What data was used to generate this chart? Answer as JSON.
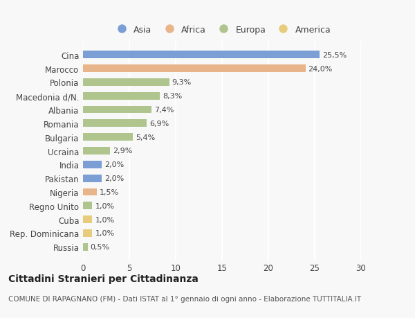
{
  "countries": [
    "Cina",
    "Marocco",
    "Polonia",
    "Macedonia d/N.",
    "Albania",
    "Romania",
    "Bulgaria",
    "Ucraina",
    "India",
    "Pakistan",
    "Nigeria",
    "Regno Unito",
    "Cuba",
    "Rep. Dominicana",
    "Russia"
  ],
  "values": [
    25.5,
    24.0,
    9.3,
    8.3,
    7.4,
    6.9,
    5.4,
    2.9,
    2.0,
    2.0,
    1.5,
    1.0,
    1.0,
    1.0,
    0.5
  ],
  "labels": [
    "25,5%",
    "24,0%",
    "9,3%",
    "8,3%",
    "7,4%",
    "6,9%",
    "5,4%",
    "2,9%",
    "2,0%",
    "2,0%",
    "1,5%",
    "1,0%",
    "1,0%",
    "1,0%",
    "0,5%"
  ],
  "continents": [
    "Asia",
    "Africa",
    "Europa",
    "Europa",
    "Europa",
    "Europa",
    "Europa",
    "Europa",
    "Asia",
    "Asia",
    "Africa",
    "Europa",
    "America",
    "America",
    "Europa"
  ],
  "colors": {
    "Asia": "#7b9fd4",
    "Africa": "#e8b48a",
    "Europa": "#b0c48e",
    "America": "#e8cc7e"
  },
  "legend_order": [
    "Asia",
    "Africa",
    "Europa",
    "America"
  ],
  "title": "Cittadini Stranieri per Cittadinanza",
  "subtitle": "COMUNE DI RAPAGNANO (FM) - Dati ISTAT al 1° gennaio di ogni anno - Elaborazione TUTTITALIA.IT",
  "xlim": [
    0,
    30
  ],
  "xticks": [
    0,
    5,
    10,
    15,
    20,
    25,
    30
  ],
  "background_color": "#f8f8f8",
  "plot_bg_color": "#f8f8f8",
  "bar_height": 0.55,
  "grid_color": "#ffffff",
  "title_fontsize": 10,
  "subtitle_fontsize": 7.5,
  "tick_fontsize": 8.5,
  "label_fontsize": 8,
  "legend_fontsize": 9
}
